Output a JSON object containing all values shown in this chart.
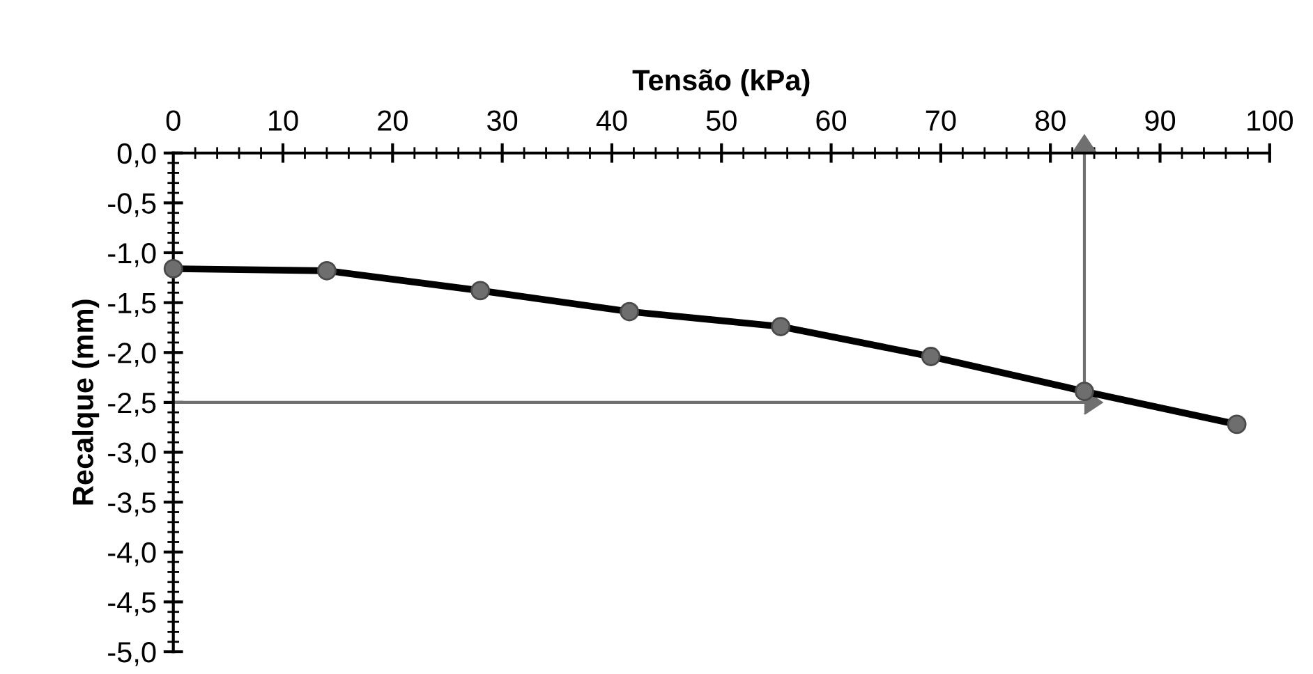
{
  "chart_data": {
    "type": "line",
    "xlabel": "Tensão (kPa)",
    "ylabel": "Recalque (mm)",
    "x": [
      0,
      14,
      28,
      41.6,
      55.4,
      69.1,
      83.1,
      97
    ],
    "series": [
      {
        "color": "#000000",
        "values": [
          -1.16,
          -1.18,
          -1.38,
          -1.59,
          -1.74,
          -2.04,
          -2.39,
          -2.72
        ]
      }
    ],
    "marker": "circle",
    "line_style": "solid",
    "grid": false,
    "legend": false,
    "xlim": [
      0,
      100
    ],
    "xticks": [
      0,
      10,
      20,
      30,
      40,
      50,
      60,
      70,
      80,
      90,
      100
    ],
    "ylim": [
      -5,
      0
    ],
    "yticks": [
      {
        "value": 0,
        "label": "0,0"
      },
      {
        "value": -0.5,
        "label": "-0,5"
      },
      {
        "value": -1,
        "label": "-1,0"
      },
      {
        "value": -1.5,
        "label": "-1,5"
      },
      {
        "value": -2,
        "label": "-2,0"
      },
      {
        "value": -2.5,
        "label": "-2,5"
      },
      {
        "value": -3,
        "label": "-3,0"
      },
      {
        "value": -3.5,
        "label": "-3,5"
      },
      {
        "value": -4,
        "label": "-4,0"
      },
      {
        "value": -4.5,
        "label": "-4,5"
      },
      {
        "value": -5,
        "label": "-5,0"
      }
    ],
    "ref_lines": [
      {
        "axis": "y",
        "value": -2.5,
        "color": "#707070"
      },
      {
        "axis": "x",
        "value": 83.1,
        "color": "#707070"
      }
    ]
  }
}
